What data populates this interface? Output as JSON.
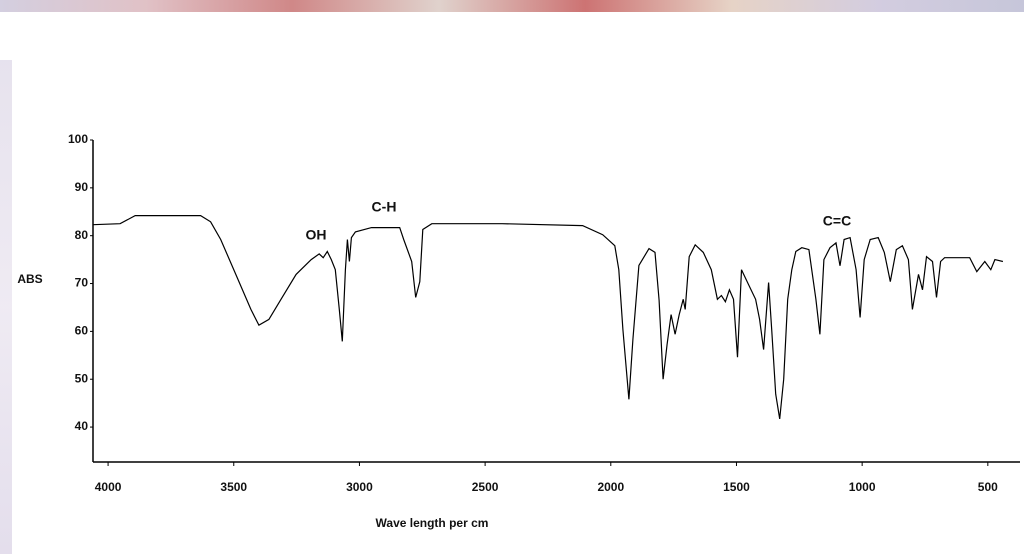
{
  "chart_data": {
    "type": "line",
    "xlabel": "Wave length per cm",
    "ylabel": "ABS",
    "annotations": [
      "OH",
      "C-H",
      "C=C"
    ],
    "xlim": [
      4060,
      372
    ],
    "ylim": [
      32.7,
      100
    ],
    "xticks": [
      4000,
      3500,
      3000,
      2500,
      2000,
      1500,
      1000,
      500
    ],
    "yticks": [
      40,
      50,
      60,
      70,
      80,
      90,
      100
    ],
    "series": [
      {
        "color": "#000000",
        "x": [
          4060,
          3952,
          3892,
          3632,
          3592,
          3552,
          3492,
          3432,
          3400,
          3360,
          3312,
          3252,
          3192,
          3160,
          3144,
          3128,
          3112,
          3096,
          3080,
          3068,
          3056,
          3048,
          3040,
          3032,
          3016,
          2952,
          2840,
          2824,
          2792,
          2776,
          2760,
          2748,
          2712,
          2432,
          2112,
          2032,
          1984,
          1968,
          1952,
          1928,
          1912,
          1888,
          1848,
          1824,
          1808,
          1792,
          1776,
          1760,
          1744,
          1728,
          1712,
          1704,
          1688,
          1664,
          1632,
          1600,
          1576,
          1560,
          1544,
          1528,
          1512,
          1496,
          1480,
          1452,
          1424,
          1408,
          1392,
          1372,
          1360,
          1344,
          1328,
          1312,
          1296,
          1280,
          1264,
          1240,
          1212,
          1184,
          1168,
          1152,
          1128,
          1104,
          1088,
          1072,
          1048,
          1024,
          1008,
          992,
          968,
          936,
          912,
          888,
          864,
          840,
          816,
          800,
          776,
          760,
          744,
          720,
          704,
          688,
          672,
          572,
          544,
          512,
          488,
          472,
          440
        ],
        "values": [
          82.3,
          82.5,
          84.2,
          84.2,
          82.9,
          79.2,
          71.9,
          64.6,
          61.3,
          62.5,
          66.7,
          71.9,
          75,
          76.2,
          75.4,
          76.7,
          75,
          72.9,
          64.6,
          57.9,
          72.9,
          79.2,
          74.6,
          79.6,
          80.8,
          81.7,
          81.7,
          79.2,
          74.6,
          67.1,
          70.4,
          81.3,
          82.5,
          82.5,
          82.1,
          80.2,
          77.9,
          72.9,
          60.4,
          45.8,
          58.3,
          73.8,
          77.3,
          76.5,
          66.5,
          50,
          57.3,
          63.5,
          59.4,
          63.5,
          66.7,
          64.6,
          75.6,
          78.1,
          76.5,
          72.9,
          66.7,
          67.5,
          66.2,
          68.7,
          66.7,
          54.6,
          72.9,
          69.8,
          66.7,
          62.5,
          56.2,
          70.2,
          60.4,
          46.9,
          41.7,
          50,
          66.7,
          72.9,
          76.7,
          77.5,
          77.1,
          66.7,
          59.4,
          75,
          77.5,
          78.5,
          73.7,
          79.2,
          79.6,
          72.9,
          62.9,
          75,
          79.2,
          79.6,
          76.5,
          70.4,
          77.1,
          77.9,
          75,
          64.6,
          71.9,
          68.7,
          75.6,
          74.6,
          67.1,
          74.6,
          75.4,
          75.4,
          72.5,
          74.6,
          72.9,
          75,
          74.6
        ]
      }
    ]
  }
}
